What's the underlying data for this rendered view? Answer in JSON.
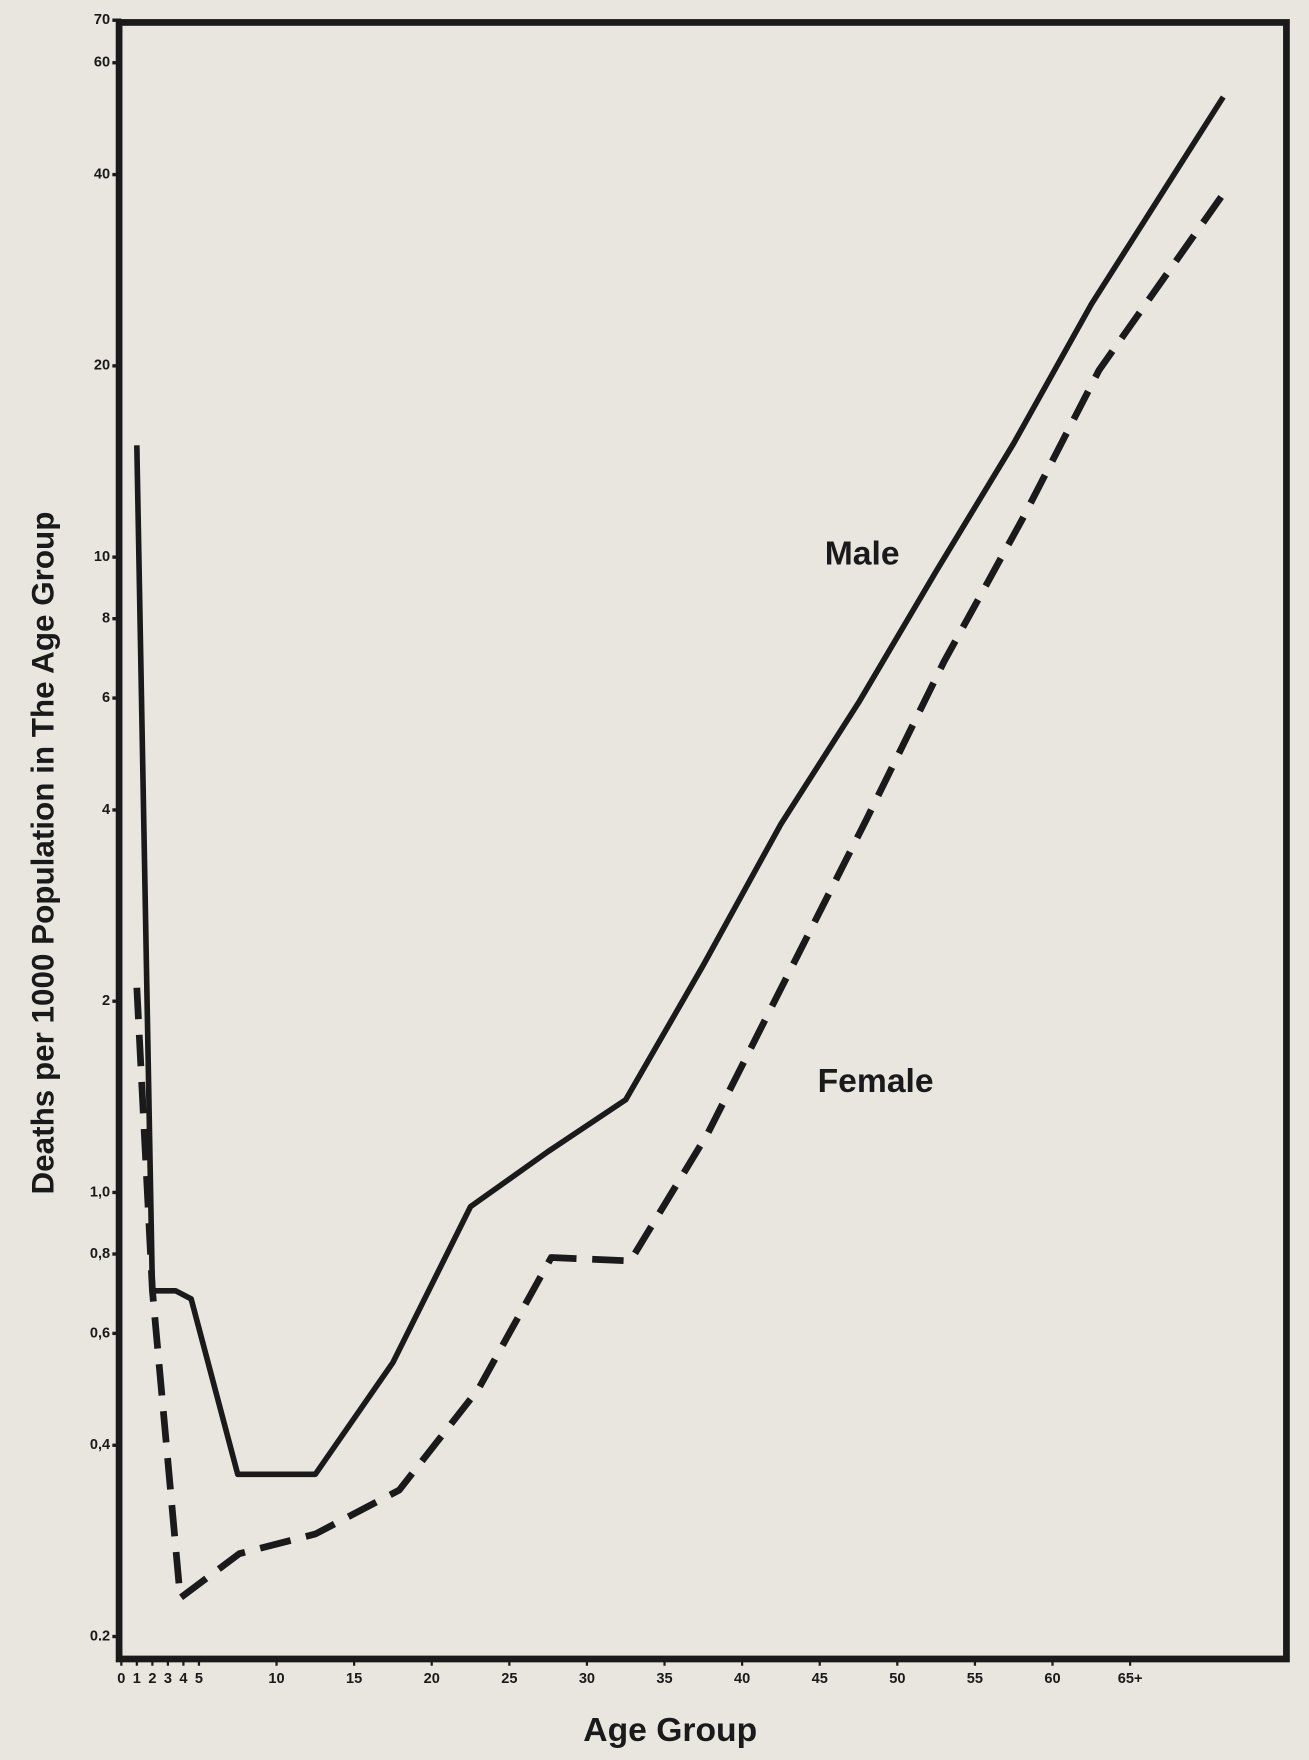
{
  "chart_data": {
    "type": "line",
    "y_label": "Deaths per 1000 Population in The Age Group",
    "x_label": "Age Group",
    "log_y": true,
    "grid": false,
    "xlim": [
      0,
      75
    ],
    "xticks": [
      0,
      1,
      2,
      3,
      4,
      5,
      10,
      15,
      20,
      25,
      30,
      35,
      40,
      45,
      50,
      55,
      60,
      {
        "value": 65,
        "label": "65+"
      }
    ],
    "ylim": [
      0.2,
      70
    ],
    "yticks": [
      {
        "value": 0.2,
        "label": "0.2"
      },
      {
        "value": 0.4,
        "label": "0,4"
      },
      {
        "value": 0.6,
        "label": "0,6"
      },
      {
        "value": 0.8,
        "label": "0,8"
      },
      {
        "value": 1,
        "label": "1,0"
      },
      2,
      4,
      6,
      8,
      10,
      20,
      40,
      60,
      70
    ],
    "series": [
      {
        "name": "Male",
        "color": "#1a1a1a",
        "style": "solid",
        "x": [
          1,
          2,
          3.5,
          4.5,
          7.5,
          12.5,
          17.5,
          22.5,
          27.5,
          32.5,
          37.5,
          42.5,
          47.5,
          52.5,
          57.5,
          62.5,
          71
        ],
        "values": [
          15,
          0.7,
          0.7,
          0.68,
          0.36,
          0.36,
          0.54,
          0.95,
          1.16,
          1.4,
          2.28,
          3.8,
          5.9,
          9.5,
          15.1,
          25,
          53
        ]
      },
      {
        "name": "Female",
        "color": "#1a1a1a",
        "style": "dashed",
        "x": [
          1,
          2,
          3.8,
          7.6,
          12.5,
          17.9,
          23,
          27.7,
          32.8,
          37.8,
          42.9,
          48,
          53,
          58,
          63,
          71.4
        ],
        "values": [
          2.1,
          0.7,
          0.23,
          0.27,
          0.29,
          0.34,
          0.49,
          0.79,
          0.78,
          1.24,
          2.19,
          3.86,
          6.84,
          11.4,
          19.7,
          38.5
        ]
      }
    ]
  }
}
